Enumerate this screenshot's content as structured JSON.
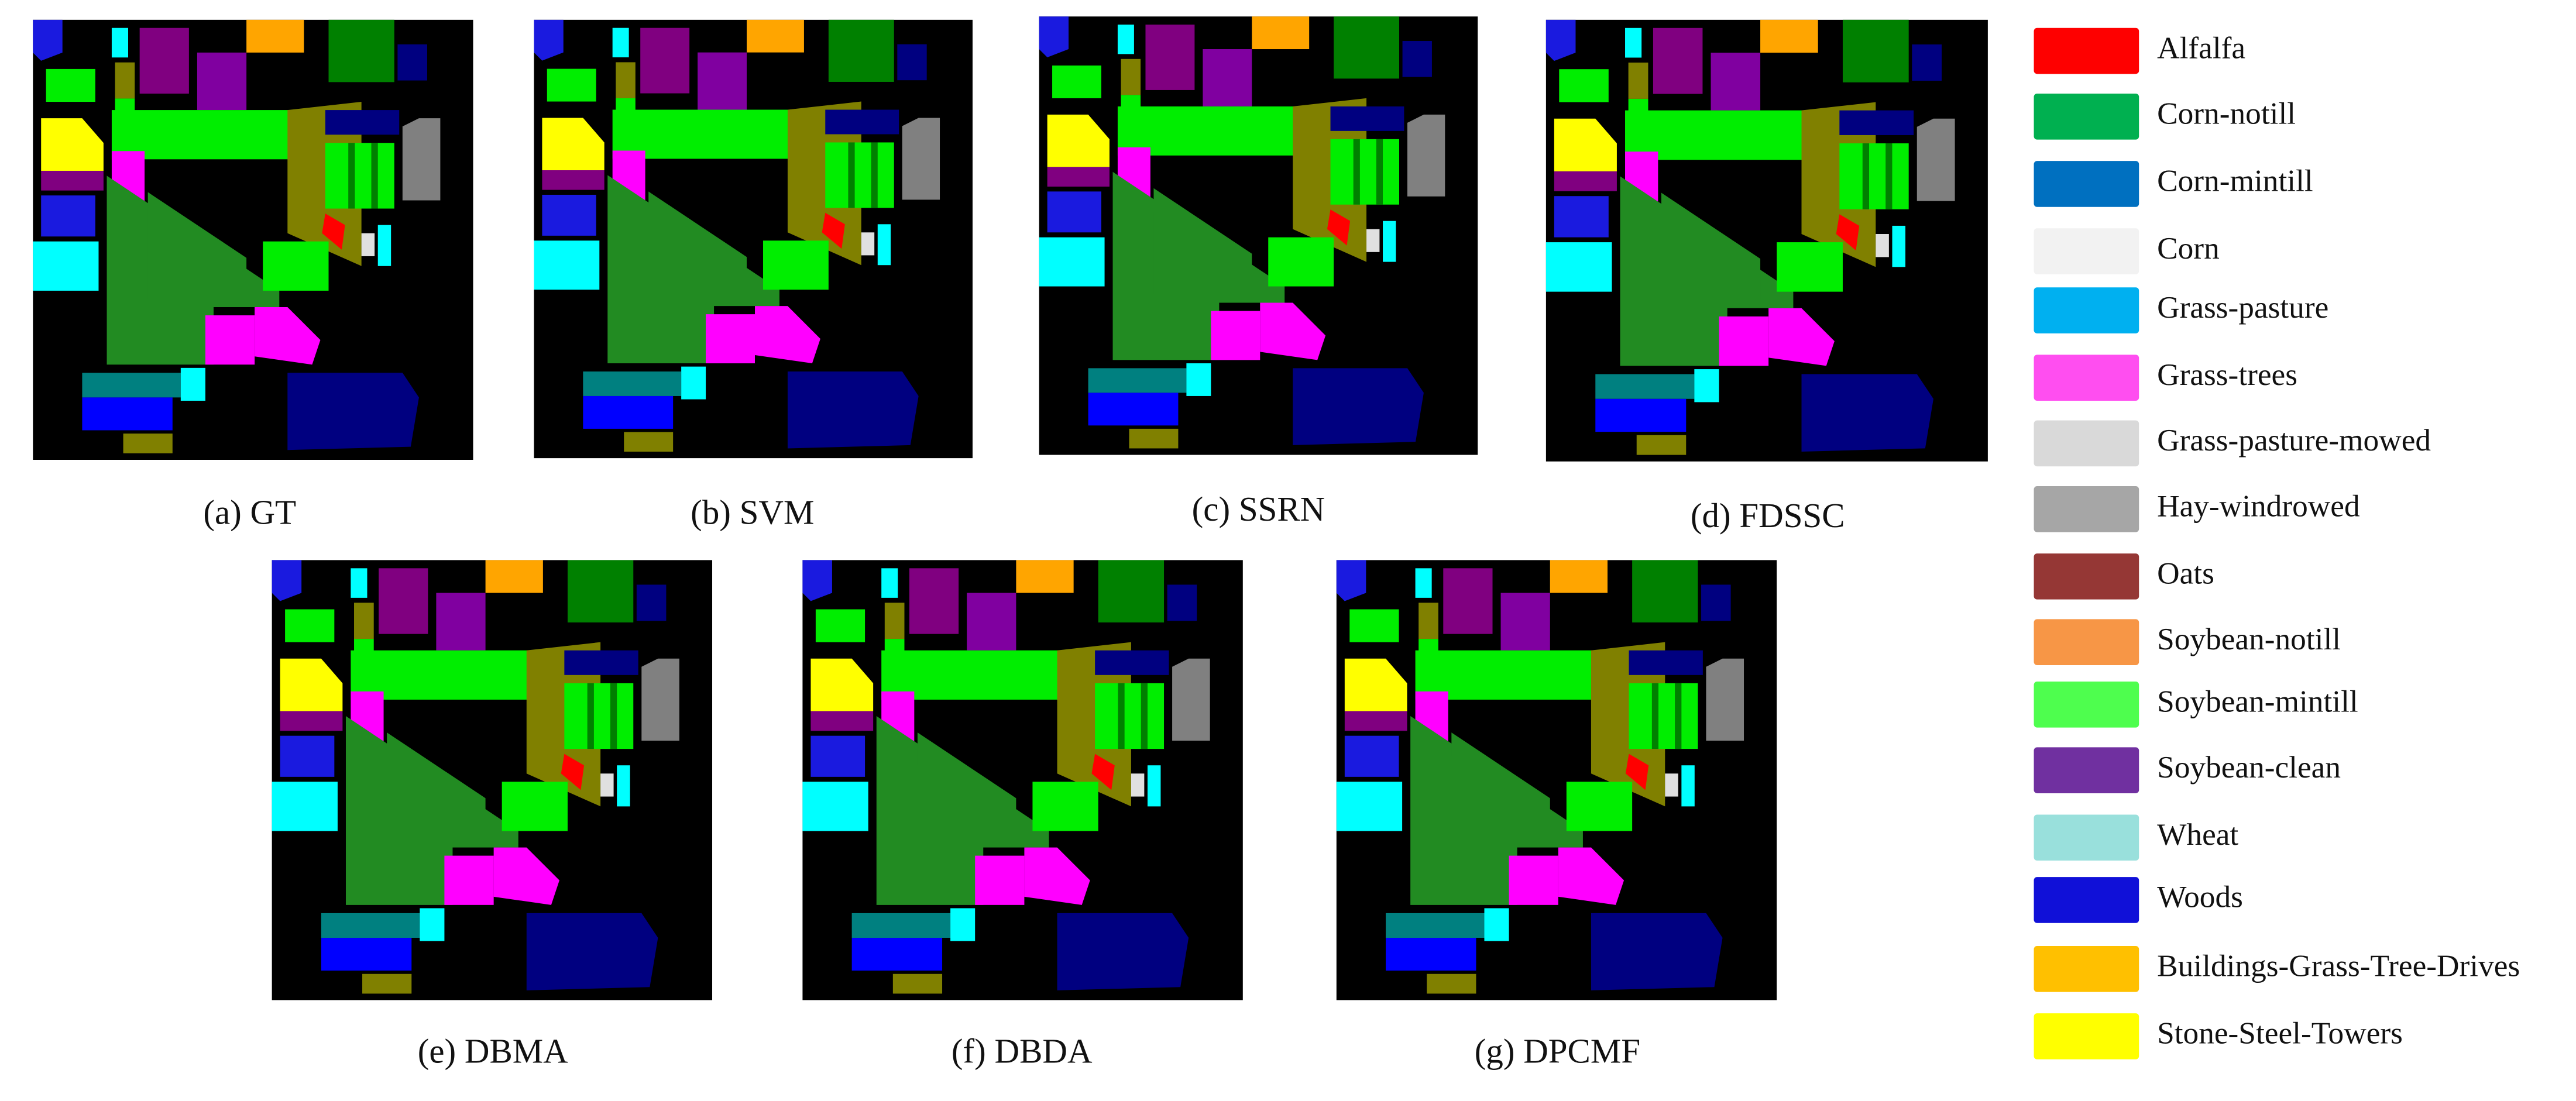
{
  "panels": [
    {
      "caption": "(a) GT"
    },
    {
      "caption": "(b) SVM"
    },
    {
      "caption": "(c) SSRN"
    },
    {
      "caption": "(d) FDSSC"
    },
    {
      "caption": "(e) DBMA"
    },
    {
      "caption": "(f) DBDA"
    },
    {
      "caption": "(g) DPCMF"
    }
  ],
  "legend": [
    {
      "label": "Alfalfa",
      "color": "#fe0000"
    },
    {
      "label": "Corn-notill",
      "color": "#00b050"
    },
    {
      "label": "Corn-mintill",
      "color": "#0070c0"
    },
    {
      "label": "Corn",
      "color": "#f2f2f2"
    },
    {
      "label": "Grass-pasture",
      "color": "#00b0f0"
    },
    {
      "label": "Grass-trees",
      "color": "#ff4ef0"
    },
    {
      "label": "Grass-pasture-mowed",
      "color": "#d9d9d9"
    },
    {
      "label": "Hay-windrowed",
      "color": "#a6a6a6"
    },
    {
      "label": "Oats",
      "color": "#953735"
    },
    {
      "label": "Soybean-notill",
      "color": "#f79646"
    },
    {
      "label": "Soybean-mintill",
      "color": "#4efe4e"
    },
    {
      "label": "Soybean-clean",
      "color": "#7030a0"
    },
    {
      "label": "Wheat",
      "color": "#99e0dc"
    },
    {
      "label": "Woods",
      "color": "#1010d8"
    },
    {
      "label": "Buildings-Grass-Tree-Drives",
      "color": "#ffc000"
    },
    {
      "label": "Stone-Steel-Towers",
      "color": "#ffff00"
    }
  ]
}
